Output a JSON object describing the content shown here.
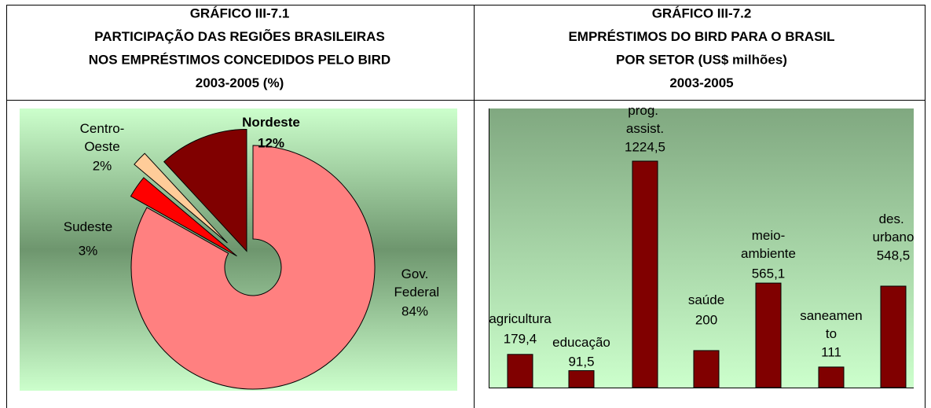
{
  "chart_data": [
    {
      "type": "pie",
      "title_lines": [
        "GRÁFICO III-7.1",
        "PARTICIPAÇÃO DAS REGIÕES BRASILEIRAS",
        "NOS EMPRÉSTIMOS CONCEDIDOS PELO BIRD",
        "2003-2005 (%)"
      ],
      "categories": [
        "Gov. Federal",
        "Sudeste",
        "Centro-Oeste",
        "Nordeste"
      ],
      "values": [
        84,
        3,
        2,
        12
      ],
      "value_labels": [
        "84%",
        "3%",
        "2%",
        "12%"
      ],
      "colors": [
        "#ff8080",
        "#ff0000",
        "#ffcc99",
        "#800000"
      ]
    },
    {
      "type": "bar",
      "title_lines": [
        "GRÁFICO III-7.2",
        "EMPRÉSTIMOS DO BIRD PARA O BRASIL",
        "POR SETOR (US$ milhões)",
        "2003-2005"
      ],
      "categories": [
        "agricultura",
        "educação",
        "prog. assist.",
        "saúde",
        "meio-ambiente",
        "saneamento",
        "des. urbano"
      ],
      "values": [
        179.4,
        91.5,
        1224.5,
        200,
        565.1,
        111,
        548.5
      ],
      "value_labels": [
        "179,4",
        "91,5",
        "1224,5",
        "200",
        "565,1",
        "111",
        "548,5"
      ],
      "color": "#800000"
    }
  ]
}
